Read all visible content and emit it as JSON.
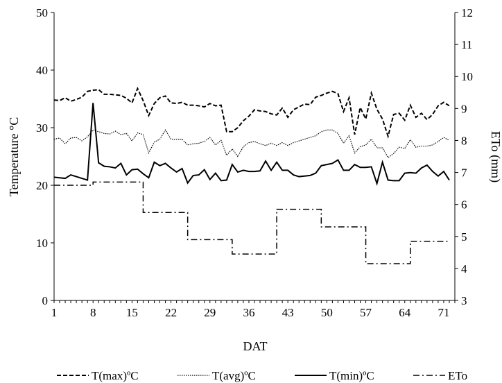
{
  "chart_data": {
    "type": "line",
    "xlabel": "DAT",
    "ylabel_left": "Temperature °C",
    "ylabel_right": "ETo (mm)",
    "xlim": [
      1,
      73
    ],
    "ylim_left": [
      0,
      50
    ],
    "ylim_right": [
      3,
      12
    ],
    "x_ticks": [
      1,
      8,
      15,
      22,
      29,
      36,
      43,
      50,
      57,
      64,
      71
    ],
    "y_ticks_left": [
      0,
      10,
      20,
      30,
      40,
      50
    ],
    "y_ticks_right": [
      3,
      4,
      5,
      6,
      7,
      8,
      9,
      10,
      11,
      12
    ],
    "grid": false,
    "legend_position": "bottom",
    "series": [
      {
        "name": "T(max)ºC",
        "axis": "left",
        "style": "dashed",
        "x": [
          1,
          2,
          3,
          4,
          5,
          6,
          7,
          8,
          9,
          10,
          11,
          12,
          13,
          14,
          15,
          16,
          17,
          18,
          19,
          20,
          21,
          22,
          23,
          24,
          25,
          26,
          27,
          28,
          29,
          30,
          31,
          32,
          33,
          34,
          35,
          36,
          37,
          38,
          39,
          40,
          41,
          42,
          43,
          44,
          45,
          46,
          47,
          48,
          49,
          50,
          51,
          52,
          53,
          54,
          55,
          56,
          57,
          58,
          59,
          60,
          61,
          62,
          63,
          64,
          65,
          66,
          67,
          68,
          69,
          70,
          71,
          72
        ],
        "values": [
          34.8,
          34.7,
          35.2,
          34.6,
          34.9,
          35.3,
          36.3,
          36.5,
          36.6,
          35.8,
          35.8,
          35.7,
          35.6,
          35.1,
          34.3,
          36.8,
          34.7,
          32.1,
          34.2,
          35.2,
          35.5,
          34.3,
          34.2,
          34.4,
          33.9,
          33.9,
          33.8,
          33.6,
          34.2,
          33.8,
          33.9,
          29.3,
          29.3,
          30.0,
          31.2,
          32.0,
          33.1,
          32.9,
          32.8,
          32.4,
          32.2,
          33.4,
          31.8,
          33.1,
          33.6,
          34.1,
          34.0,
          35.3,
          35.6,
          36.0,
          36.3,
          35.9,
          32.8,
          35.2,
          28.8,
          33.5,
          31.5,
          36.0,
          33.2,
          31.5,
          28.5,
          32.3,
          32.5,
          31.3,
          33.9,
          31.8,
          32.5,
          31.4,
          32.3,
          33.8,
          34.4,
          33.8
        ]
      },
      {
        "name": "T(avg)ºC",
        "axis": "left",
        "style": "dotted",
        "x": [
          1,
          2,
          3,
          4,
          5,
          6,
          7,
          8,
          9,
          10,
          11,
          12,
          13,
          14,
          15,
          16,
          17,
          18,
          19,
          20,
          21,
          22,
          23,
          24,
          25,
          26,
          27,
          28,
          29,
          30,
          31,
          32,
          33,
          34,
          35,
          36,
          37,
          38,
          39,
          40,
          41,
          42,
          43,
          44,
          45,
          46,
          47,
          48,
          49,
          50,
          51,
          52,
          53,
          54,
          55,
          56,
          57,
          58,
          59,
          60,
          61,
          62,
          63,
          64,
          65,
          66,
          67,
          68,
          69,
          70,
          71,
          72
        ],
        "values": [
          28.0,
          28.2,
          27.2,
          28.2,
          28.3,
          27.7,
          28.4,
          29.6,
          29.3,
          29.0,
          28.9,
          29.4,
          28.8,
          29.0,
          27.7,
          29.1,
          28.8,
          25.6,
          27.5,
          28.0,
          29.6,
          28.0,
          28.0,
          28.0,
          27.0,
          27.2,
          27.3,
          27.6,
          28.3,
          27.0,
          27.8,
          25.2,
          26.3,
          25.0,
          26.7,
          27.4,
          27.6,
          27.2,
          26.9,
          27.3,
          26.9,
          27.4,
          26.9,
          27.4,
          27.7,
          28.0,
          28.3,
          28.6,
          29.3,
          29.6,
          29.6,
          29.0,
          27.3,
          28.6,
          25.6,
          26.7,
          27.0,
          28.0,
          26.5,
          26.5,
          24.8,
          25.5,
          26.6,
          26.4,
          27.9,
          26.6,
          26.8,
          26.8,
          27.0,
          27.6,
          28.3,
          27.8
        ]
      },
      {
        "name": "T(min)ºC",
        "axis": "left",
        "style": "solid",
        "x": [
          1,
          2,
          3,
          4,
          5,
          6,
          7,
          8,
          9,
          10,
          11,
          12,
          13,
          14,
          15,
          16,
          17,
          18,
          19,
          20,
          21,
          22,
          23,
          24,
          25,
          26,
          27,
          28,
          29,
          30,
          31,
          32,
          33,
          34,
          35,
          36,
          37,
          38,
          39,
          40,
          41,
          42,
          43,
          44,
          45,
          46,
          47,
          48,
          49,
          50,
          51,
          52,
          53,
          54,
          55,
          56,
          57,
          58,
          59,
          60,
          61,
          62,
          63,
          64,
          65,
          66,
          67,
          68,
          69,
          70,
          71,
          72
        ],
        "values": [
          21.4,
          21.3,
          21.2,
          21.8,
          21.5,
          21.2,
          20.9,
          34.3,
          23.9,
          23.3,
          23.2,
          23.0,
          23.8,
          21.8,
          22.7,
          22.8,
          22.0,
          21.3,
          24.0,
          23.4,
          23.8,
          23.0,
          22.3,
          22.9,
          20.4,
          21.7,
          21.8,
          22.7,
          21.0,
          22.1,
          20.8,
          20.9,
          23.6,
          22.3,
          22.6,
          22.4,
          22.4,
          22.5,
          24.2,
          22.6,
          24.0,
          22.6,
          22.6,
          21.8,
          21.5,
          21.6,
          21.7,
          22.1,
          23.4,
          23.6,
          23.8,
          24.4,
          22.6,
          22.6,
          23.6,
          23.1,
          23.1,
          23.2,
          20.3,
          24.0,
          20.9,
          20.8,
          20.8,
          22.1,
          22.2,
          22.1,
          23.0,
          23.5,
          22.4,
          21.6,
          22.4,
          20.9
        ]
      },
      {
        "name": "ETo",
        "axis": "right",
        "style": "dashdot",
        "x": [
          1,
          2,
          3,
          4,
          5,
          6,
          7,
          8,
          9,
          10,
          11,
          12,
          13,
          14,
          15,
          16,
          17,
          18,
          19,
          20,
          21,
          22,
          23,
          24,
          25,
          26,
          27,
          28,
          29,
          30,
          31,
          32,
          33,
          34,
          35,
          36,
          37,
          38,
          39,
          40,
          41,
          42,
          43,
          44,
          45,
          46,
          47,
          48,
          49,
          50,
          51,
          52,
          53,
          54,
          55,
          56,
          57,
          58,
          59,
          60,
          61,
          62,
          63,
          64,
          65,
          66,
          67,
          68,
          69,
          70,
          71,
          72
        ],
        "values": [
          6.6,
          6.6,
          6.6,
          6.6,
          6.6,
          6.6,
          6.6,
          6.7,
          6.7,
          6.7,
          6.7,
          6.7,
          6.7,
          6.7,
          6.7,
          6.7,
          5.75,
          5.75,
          5.75,
          5.75,
          5.75,
          5.75,
          5.75,
          5.75,
          4.9,
          4.9,
          4.9,
          4.9,
          4.9,
          4.9,
          4.9,
          4.9,
          4.45,
          4.45,
          4.45,
          4.45,
          4.45,
          4.45,
          4.45,
          4.45,
          5.85,
          5.85,
          5.85,
          5.85,
          5.85,
          5.85,
          5.85,
          5.85,
          5.3,
          5.3,
          5.3,
          5.3,
          5.3,
          5.3,
          5.3,
          5.3,
          4.15,
          4.15,
          4.15,
          4.15,
          4.15,
          4.15,
          4.15,
          4.15,
          4.85,
          4.85,
          4.85,
          4.85,
          4.85,
          4.85,
          4.85,
          4.85
        ]
      }
    ]
  }
}
